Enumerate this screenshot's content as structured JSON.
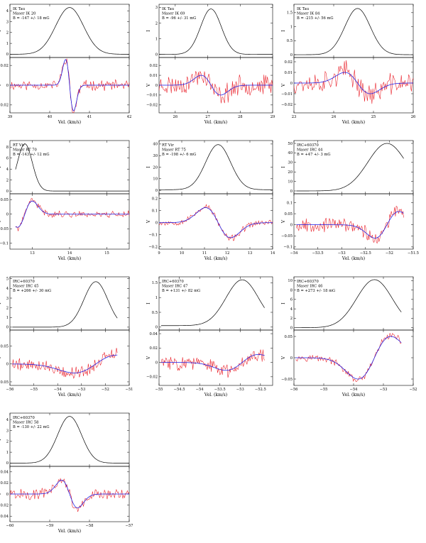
{
  "chart_data": [
    {
      "type": "line",
      "source": "IK Tau",
      "maser": "Maser IK 20",
      "field": "B = -147 +/- 18 mG",
      "xlim": [
        39,
        42
      ],
      "xticks": [
        39,
        40,
        41,
        42
      ],
      "xlabel": "Vel. (km/s)",
      "i_panel": {
        "ylabel": "I",
        "ylim": [
          -0.3,
          4.6
        ],
        "yticks": [
          0,
          1,
          2,
          3,
          4
        ],
        "profile": {
          "kind": "gauss",
          "center": 40.5,
          "width": 0.35,
          "peak": 4.3,
          "base": 0
        }
      },
      "v_panel": {
        "ylabel": "V",
        "ylim": [
          -0.028,
          0.028
        ],
        "yticks": [
          -0.02,
          0,
          0.02
        ],
        "fit": {
          "kind": "deriv",
          "center": 40.5,
          "width": 0.1,
          "amp": 0.026
        },
        "noise": 0.004,
        "seed": 11
      }
    },
    {
      "type": "line",
      "source": "IK Tau",
      "maser": "Maser IK 69",
      "field": "B = -96 +/- 31 mG",
      "xlim": [
        25.5,
        29
      ],
      "xticks": [
        26,
        27,
        28,
        29
      ],
      "xlabel": "Vel. (km/s)",
      "i_panel": {
        "ylabel": "I",
        "ylim": [
          -0.2,
          3.2
        ],
        "yticks": [
          0,
          1,
          2,
          3
        ],
        "profile": {
          "kind": "gauss",
          "center": 27.1,
          "width": 0.32,
          "peak": 2.9,
          "base": 0
        }
      },
      "v_panel": {
        "ylabel": "V",
        "ylim": [
          -0.028,
          0.028
        ],
        "yticks": [
          -0.02,
          -0.01,
          0,
          0.01,
          0.02
        ],
        "fit": {
          "kind": "deriv",
          "center": 27.1,
          "width": 0.3,
          "amp": 0.01
        },
        "noise": 0.008,
        "seed": 23
      }
    },
    {
      "type": "line",
      "source": "IK Tau",
      "maser": "Maser IK 84",
      "field": "B = -215 +/- 56 mG",
      "xlim": [
        23,
        26
      ],
      "xticks": [
        23,
        24,
        25,
        26
      ],
      "xlabel": "Vel. (km/s)",
      "i_panel": {
        "ylabel": "I",
        "ylim": [
          -0.1,
          1.8
        ],
        "yticks": [
          0,
          0.5,
          1,
          1.5
        ],
        "profile": {
          "kind": "gauss",
          "center": 24.6,
          "width": 0.32,
          "peak": 1.65,
          "base": 0
        }
      },
      "v_panel": {
        "ylabel": "V",
        "ylim": [
          -0.028,
          0.024
        ],
        "yticks": [
          -0.02,
          -0.01,
          0,
          0.01,
          0.02
        ],
        "fit": {
          "kind": "deriv",
          "center": 24.6,
          "width": 0.32,
          "amp": 0.01
        },
        "noise": 0.008,
        "seed": 37
      }
    },
    {
      "type": "line",
      "source": "RT Vir",
      "maser": "Maser RT 70",
      "field": "B = -143 +/- 12 mG",
      "xlim": [
        12.4,
        15.6
      ],
      "xticks": [
        13,
        14,
        15
      ],
      "xlabel": "Vel. (km/s)",
      "i_panel": {
        "ylabel": "I",
        "ylim": [
          -0.5,
          9.2
        ],
        "yticks": [
          0,
          2,
          4,
          6,
          8
        ],
        "profile": {
          "kind": "gauss",
          "center": 12.8,
          "width": 0.2,
          "peak": 8.6,
          "base": 0,
          "start": 12.55
        }
      },
      "v_panel": {
        "ylabel": "V",
        "ylim": [
          -0.12,
          0.07
        ],
        "yticks": [
          -0.1,
          -0.05,
          0,
          0.05
        ],
        "fit": {
          "kind": "deriv",
          "center": 12.8,
          "width": 0.2,
          "amp": -0.045,
          "start": 12.55
        },
        "noise": 0.009,
        "seed": 41
      }
    },
    {
      "type": "line",
      "source": "RT Vir",
      "maser": "Maser RT 75",
      "field": "B = -198 +/- 6 mG",
      "xlim": [
        9,
        14
      ],
      "xticks": [
        9,
        10,
        11,
        12,
        13,
        14
      ],
      "xlabel": "Vel. (km/s)",
      "i_panel": {
        "ylabel": "I",
        "ylim": [
          -3,
          43
        ],
        "yticks": [
          0,
          10,
          20,
          30,
          40
        ],
        "profile": {
          "kind": "gauss",
          "center": 11.6,
          "width": 0.55,
          "peak": 39,
          "base": 0.5
        }
      },
      "v_panel": {
        "ylabel": "V",
        "ylim": [
          -0.22,
          0.24
        ],
        "yticks": [
          -0.2,
          -0.1,
          0,
          0.1,
          0.2
        ],
        "fit": {
          "kind": "deriv",
          "center": 11.6,
          "width": 0.55,
          "amp": 0.125
        },
        "noise": 0.02,
        "seed": 53
      }
    },
    {
      "type": "line",
      "source": "IRC+60370",
      "maser": "Maser IRC 44",
      "field": "B = +47 +/- 3 mG",
      "xlim": [
        -54,
        -51.5
      ],
      "xticks": [
        -54,
        -53.5,
        -53,
        -52.5,
        -52,
        -51.5
      ],
      "xlabel": "Vel. (km/s)",
      "i_panel": {
        "ylabel": "I",
        "ylim": [
          -3,
          53
        ],
        "yticks": [
          0,
          10,
          20,
          30,
          40,
          50
        ],
        "profile": {
          "kind": "gauss",
          "center": -52.05,
          "width": 0.4,
          "peak": 50,
          "base": 0,
          "start": -53.95,
          "end": -51.7
        }
      },
      "v_panel": {
        "ylabel": "V",
        "ylim": [
          -0.11,
          0.14
        ],
        "yticks": [
          -0.1,
          -0.05,
          0,
          0.05,
          0.1
        ],
        "fit": {
          "kind": "deriv",
          "center": -52.05,
          "width": 0.25,
          "amp": -0.06,
          "start": -53.95,
          "end": -51.7
        },
        "noise": 0.025,
        "seed": 67
      }
    },
    {
      "type": "line",
      "source": "IRC+60370",
      "maser": "Maser IRC 45",
      "field": "B = +266 +/- 30 mG",
      "xlim": [
        -56,
        -51
      ],
      "xticks": [
        -56,
        -55,
        -54,
        -53,
        -52,
        -51
      ],
      "xlabel": "Vel. (km/s)",
      "i_panel": {
        "ylabel": "I",
        "ylim": [
          -0.3,
          5.2
        ],
        "yticks": [
          0,
          1,
          2,
          3,
          4,
          5
        ],
        "profile": {
          "kind": "gauss",
          "center": -52.4,
          "width": 0.5,
          "peak": 4.7,
          "base": 0,
          "start": -55.9,
          "end": -51.5
        }
      },
      "v_panel": {
        "ylabel": "V",
        "ylim": [
          -0.06,
          0.095
        ],
        "yticks": [
          -0.05,
          0,
          0.05
        ],
        "fit": {
          "kind": "deriv",
          "center": -52.4,
          "width": 0.9,
          "amp": -0.025,
          "start": -55.9,
          "end": -51.5
        },
        "noise": 0.014,
        "seed": 79
      }
    },
    {
      "type": "line",
      "source": "IRC+60370",
      "maser": "Maser IRC 47",
      "field": "B = +131 +/- 82 mG",
      "xlim": [
        -55,
        -52.2
      ],
      "xticks": [
        -55,
        -54.5,
        -54,
        -53.5,
        -53,
        -52.5
      ],
      "xlabel": "Vel. (km/s)",
      "i_panel": {
        "ylabel": "I",
        "ylim": [
          -0.1,
          1.7
        ],
        "yticks": [
          0,
          0.5,
          1,
          1.5
        ],
        "profile": {
          "kind": "gauss",
          "center": -52.95,
          "width": 0.4,
          "peak": 1.55,
          "base": 0.05,
          "start": -54.95,
          "end": -52.4
        }
      },
      "v_panel": {
        "ylabel": "V",
        "ylim": [
          -0.032,
          0.045
        ],
        "yticks": [
          -0.02,
          0,
          0.02,
          0.04
        ],
        "fit": {
          "kind": "deriv",
          "center": -52.95,
          "width": 0.4,
          "amp": -0.011,
          "start": -54.95,
          "end": -52.4
        },
        "noise": 0.008,
        "seed": 83
      }
    },
    {
      "type": "line",
      "source": "IRC+60370",
      "maser": "Maser IRC 46",
      "field": "B = +273 +/- 18 mG",
      "xlim": [
        -56,
        -52
      ],
      "xticks": [
        -56,
        -55,
        -54,
        -53,
        -52
      ],
      "xlabel": "Vel. (km/s)",
      "i_panel": {
        "ylabel": "I",
        "ylim": [
          -0.5,
          10.8
        ],
        "yticks": [
          0,
          2,
          4,
          6,
          8,
          10
        ],
        "profile": {
          "kind": "gauss",
          "center": -53.3,
          "width": 0.6,
          "peak": 10.2,
          "base": 0,
          "start": -55.95,
          "end": -52.4
        }
      },
      "v_panel": {
        "ylabel": "V",
        "ylim": [
          -0.065,
          0.065
        ],
        "yticks": [
          -0.05,
          0,
          0.05
        ],
        "fit": {
          "kind": "deriv",
          "center": -53.3,
          "width": 0.55,
          "amp": -0.05,
          "start": -55.95,
          "end": -52.4
        },
        "noise": 0.006,
        "seed": 97
      }
    },
    {
      "type": "line",
      "source": "IRC+60370",
      "maser": "Maser IRC 58",
      "field": "B = -130 +/- 22 mG",
      "xlim": [
        -60,
        -57
      ],
      "xticks": [
        -60,
        -59,
        -58,
        -57
      ],
      "xlabel": "Vel. (km/s)",
      "i_panel": {
        "ylabel": "I",
        "ylim": [
          -0.3,
          4.6
        ],
        "yticks": [
          0,
          1,
          2,
          3,
          4
        ],
        "profile": {
          "kind": "gauss",
          "center": -58.5,
          "width": 0.3,
          "peak": 4.3,
          "base": 0
        }
      },
      "v_panel": {
        "ylabel": "V",
        "ylim": [
          -0.05,
          0.05
        ],
        "yticks": [
          -0.04,
          -0.02,
          0,
          0.02,
          0.04
        ],
        "fit": {
          "kind": "deriv",
          "center": -58.5,
          "width": 0.2,
          "amp": 0.025
        },
        "noise": 0.008,
        "seed": 101
      }
    }
  ]
}
